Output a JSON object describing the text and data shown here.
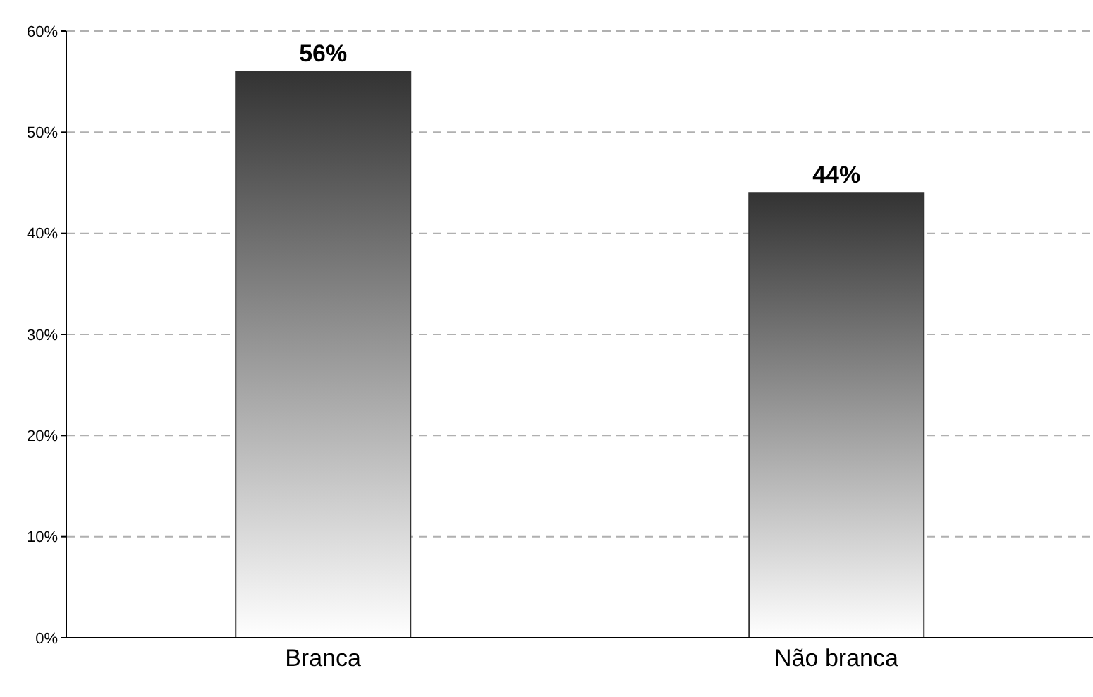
{
  "chart_data": {
    "type": "bar",
    "categories": [
      "Branca",
      "Não branca"
    ],
    "values": [
      56,
      44
    ],
    "color": "#333333",
    "value_labels": [
      "56%",
      "44%"
    ],
    "ylim": [
      0,
      60
    ],
    "yticks": [
      {
        "value": 0,
        "label": "0%"
      },
      {
        "value": 10,
        "label": "10%"
      },
      {
        "value": 20,
        "label": "20%"
      },
      {
        "value": 30,
        "label": "30%"
      },
      {
        "value": 40,
        "label": "40%"
      },
      {
        "value": 50,
        "label": "50%"
      },
      {
        "value": 60,
        "label": "60%"
      }
    ],
    "grid": "y"
  }
}
